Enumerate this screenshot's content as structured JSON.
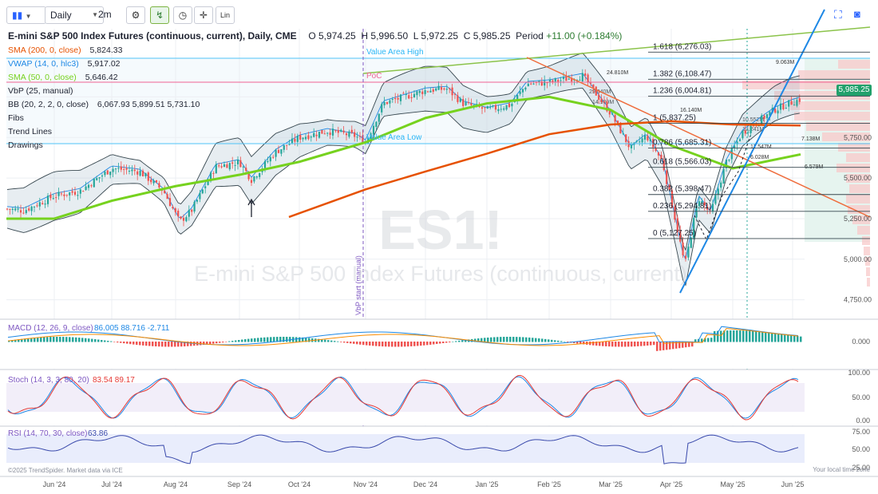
{
  "toolbar": {
    "chart_type_icon": "candles-icon",
    "interval": "Daily",
    "range": "2m",
    "buttons": [
      "settings-icon",
      "pattern-icon",
      "clock-icon",
      "crosshair-icon"
    ],
    "lin_label": "Lin"
  },
  "header": {
    "symbol_title": "E-mini S&P 500 Index Futures (continuous, current), Daily, CME",
    "open_label": "O",
    "open": "5,974.25",
    "high_label": "H",
    "high": "5,996.50",
    "low_label": "L",
    "low": "5,972.25",
    "close_label": "C",
    "close": "5,985.25",
    "period_label": "Period",
    "period": "+11.00 (+0.184%)"
  },
  "indicators": [
    {
      "name": "SMA (200, 0, close)",
      "value": "5,824.33",
      "color": "#e65100"
    },
    {
      "name": "VWAP (14, 0, hlc3)",
      "value": "5,917.02",
      "color": "#1e88e5"
    },
    {
      "name": "SMA (50, 0, close)",
      "value": "5,646.42",
      "color": "#76d21e"
    },
    {
      "name": "VbP (25, manual)",
      "value": "",
      "color": "#1e2230"
    },
    {
      "name": "BB (20, 2, 2, 0, close)",
      "value": "6,067.93  5,899.51  5,731.10",
      "color": "#1e2230"
    },
    {
      "name": "Fibs",
      "value": "",
      "color": "#1e2230"
    },
    {
      "name": "Trend Lines",
      "value": "",
      "color": "#1e2230"
    },
    {
      "name": "Drawings",
      "value": "",
      "color": "#1e2230"
    }
  ],
  "watermark": {
    "ticker": "ES1!",
    "name": "E-mini S&P 500 Index Futures (continuous, current)"
  },
  "last_price": "5,985.25",
  "vap_labels": {
    "value_area_high": "Value Area High",
    "poc": "PoC",
    "value_area_low": "Value Area Low",
    "vbp_start": "VbP start (manual)"
  },
  "fib_levels": [
    {
      "label": "1.618 (6,276.03)",
      "price": 6276.03
    },
    {
      "label": "1.382 (6,108.47)",
      "price": 6108.47
    },
    {
      "label": "1.236 (6,004.81)",
      "price": 6004.81
    },
    {
      "label": "1 (5,837.25)",
      "price": 5837.25
    },
    {
      "label": "0.786 (5,685.31)",
      "price": 5685.31
    },
    {
      "label": "0.618 (5,566.03)",
      "price": 5566.03
    },
    {
      "label": "0.382 (5,398.47)",
      "price": 5398.47
    },
    {
      "label": "0.236 (5,294.81)",
      "price": 5294.81
    },
    {
      "label": "0 (5,127.25)",
      "price": 5127.25
    }
  ],
  "volume_profile_labels": [
    "9.063M",
    "24.810M",
    "29.040M",
    "14.909M",
    "16.140M",
    "10.552M",
    "13.241M",
    "11.547M",
    "7.138M",
    "6.028M",
    "6.579M"
  ],
  "price_axis": [
    "5,750.00",
    "5,500.00",
    "5,250.00",
    "5,000.00",
    "4,750.00"
  ],
  "x_axis": [
    "Jun '24",
    "Jul '24",
    "Aug '24",
    "Sep '24",
    "Oct '24",
    "Nov '24",
    "Dec '24",
    "Jan '25",
    "Feb '25",
    "Mar '25",
    "Apr '25",
    "May '25",
    "Jun '25"
  ],
  "macd": {
    "label": "MACD (12, 26, 9, close)",
    "values": "86.005  88.716  -2.711",
    "axis": [
      "0.000"
    ]
  },
  "stoch": {
    "label": "Stoch (14, 3, 3, 80, 20)",
    "values": "83.54  89.17",
    "axis": [
      "100.00",
      "50.00",
      "0.00"
    ]
  },
  "rsi": {
    "label": "RSI (14, 70, 30, close)",
    "value": "63.86",
    "axis": [
      "75.00",
      "50.00",
      "25.00"
    ]
  },
  "footer_left": "©2025 TrendSpider. Market data via ICE",
  "footer_right": "Your local time zone",
  "chart_data": {
    "type": "line",
    "title": "E-mini S&P 500 Index Futures (continuous, current), Daily, CME",
    "x": [
      "Jun '24",
      "Jul '24",
      "Aug '24",
      "Sep '24",
      "Oct '24",
      "Nov '24",
      "Dec '24",
      "Jan '25",
      "Feb '25",
      "Mar '25",
      "Apr '25",
      "May '25",
      "Jun '25"
    ],
    "series": [
      {
        "name": "close",
        "values": [
          5390,
          5560,
          5420,
          5650,
          5770,
          5790,
          6050,
          5920,
          6100,
          5650,
          5200,
          5750,
          5985
        ]
      },
      {
        "name": "SMA (200, 0, close)",
        "values": [
          null,
          null,
          null,
          null,
          5320,
          5430,
          5540,
          5650,
          5770,
          5830,
          5850,
          5830,
          5824
        ]
      },
      {
        "name": "SMA (50, 0, close)",
        "values": [
          5250,
          5360,
          5450,
          5520,
          5600,
          5720,
          5870,
          5960,
          6000,
          5920,
          5700,
          5560,
          5646
        ]
      }
    ],
    "ylim": [
      4600,
      6400
    ],
    "grid": true
  }
}
